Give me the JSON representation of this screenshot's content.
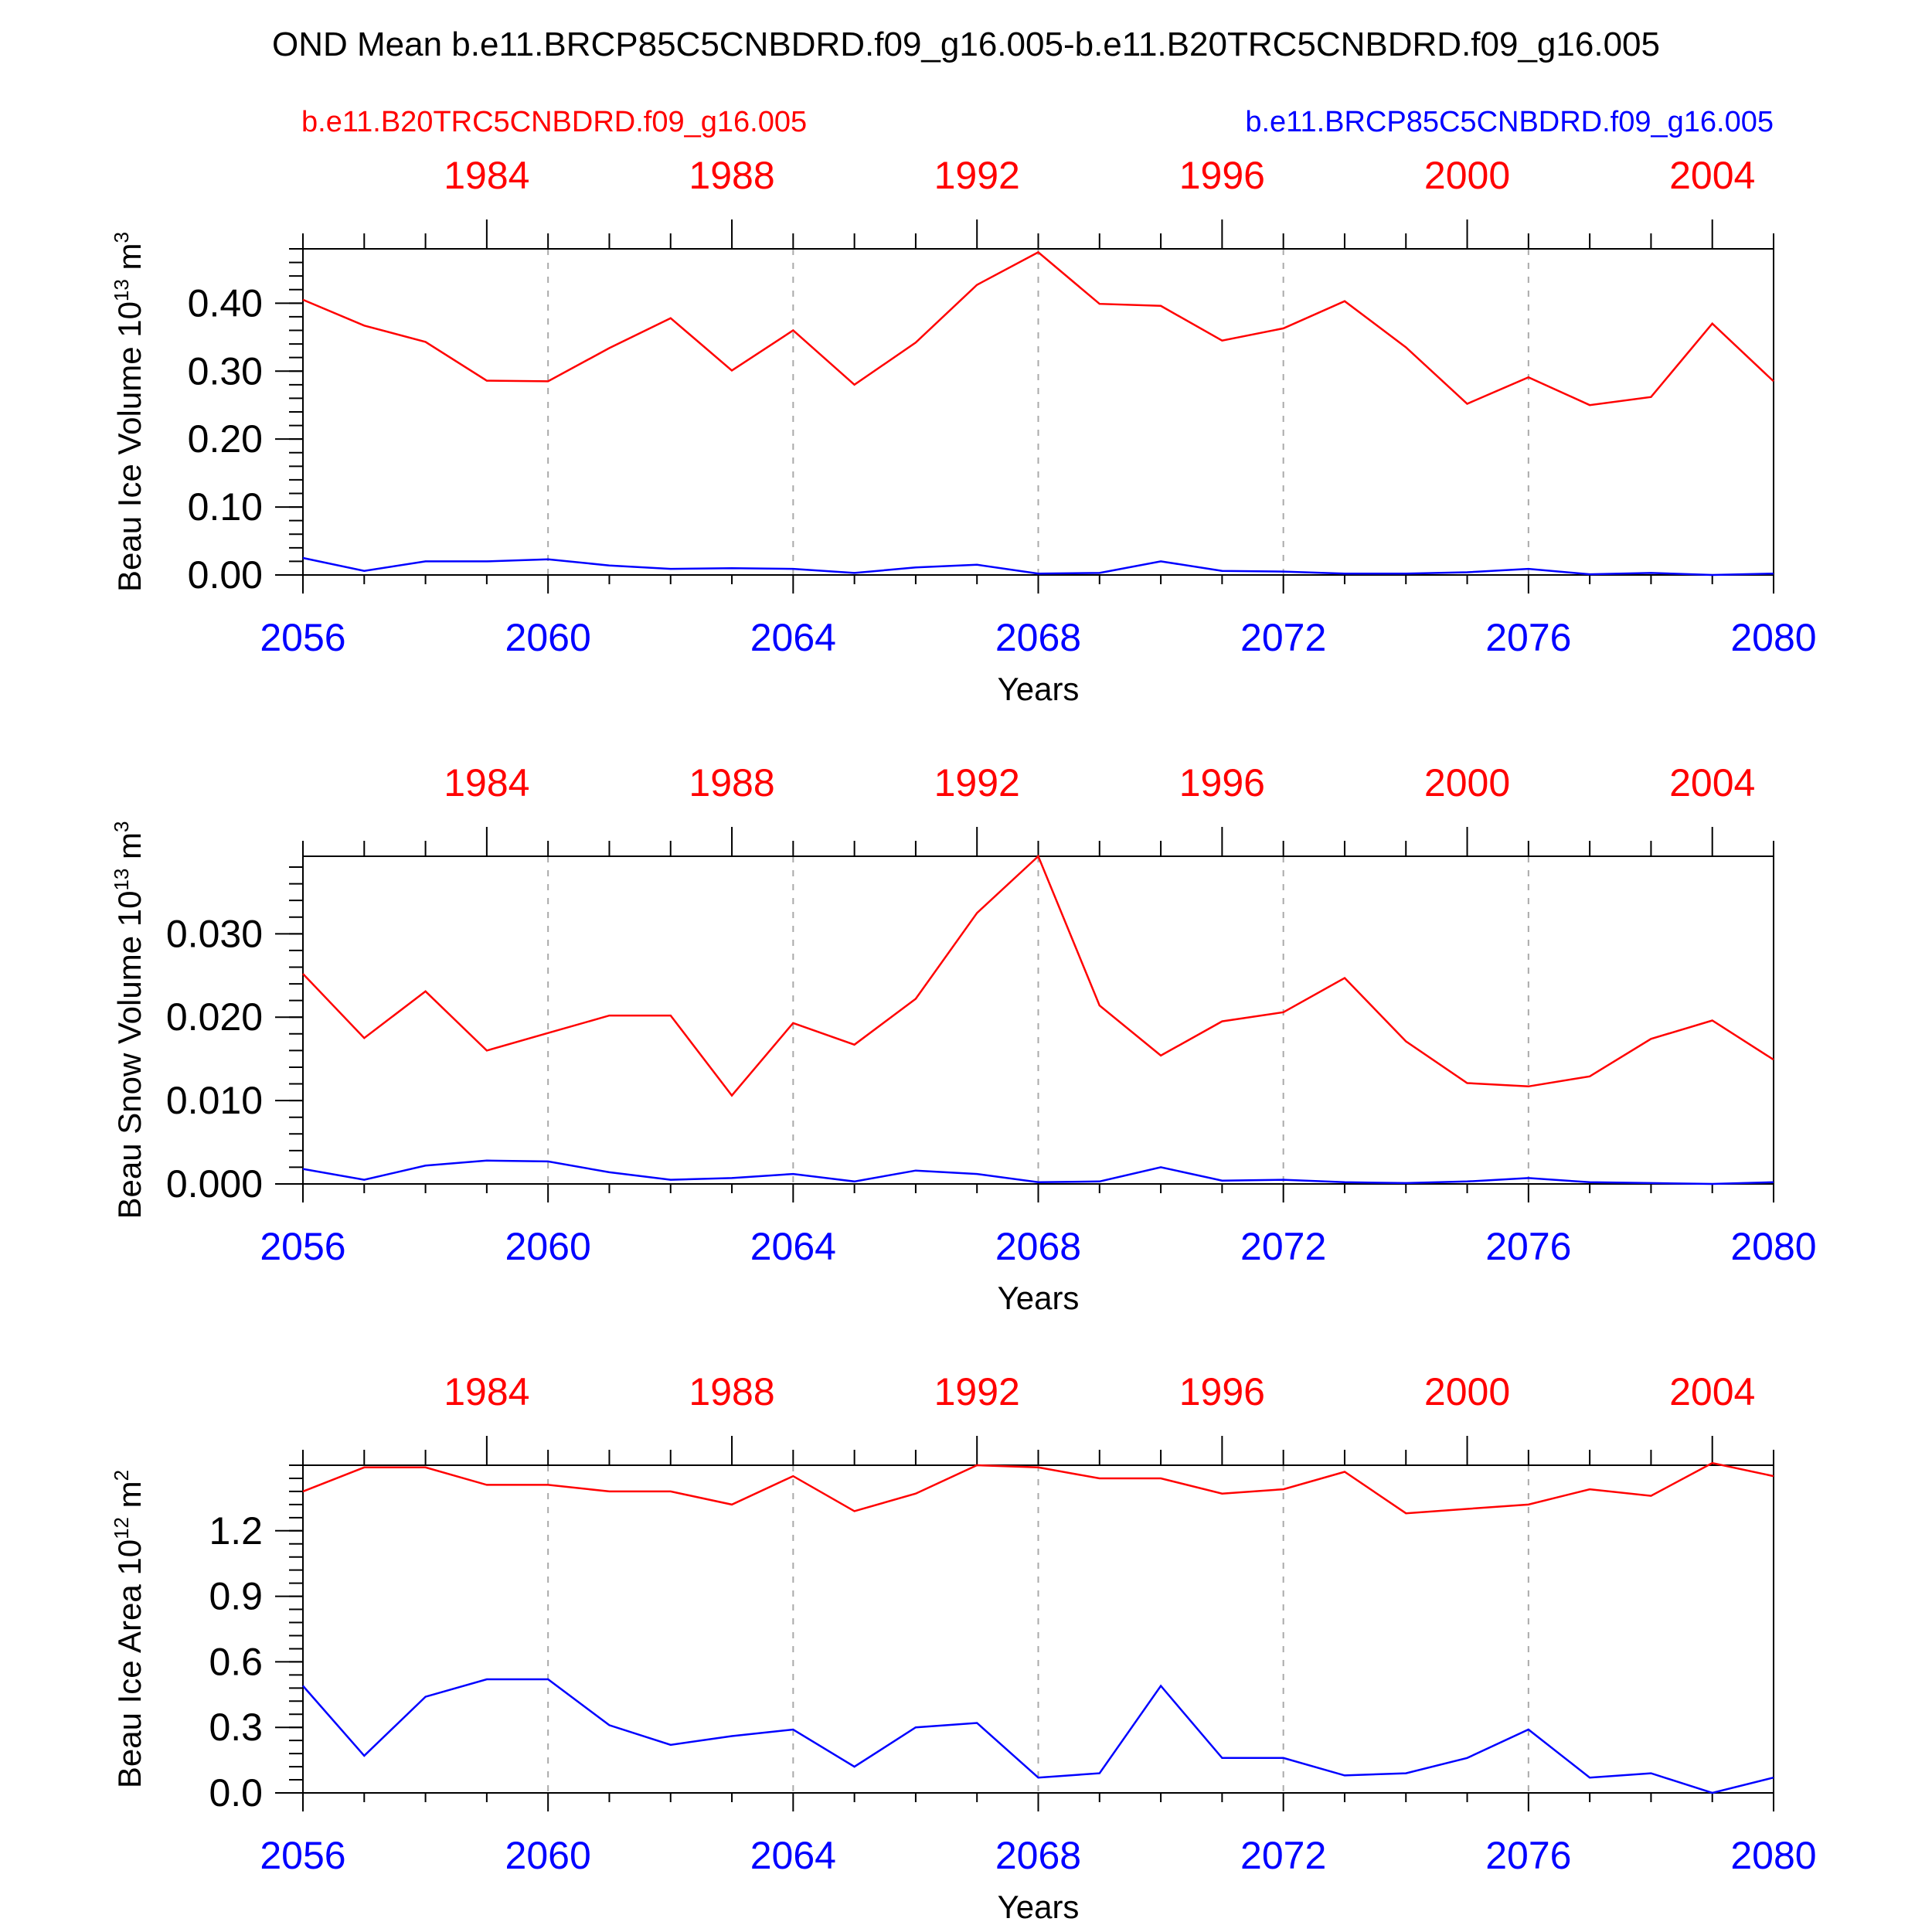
{
  "title": "OND Mean b.e11.BRCP85C5CNBDRD.f09_g16.005-b.e11.B20TRC5CNBDRD.f09_g16.005",
  "legend": {
    "left_label": "b.e11.B20TRC5CNBDRD.f09_g16.005",
    "right_label": "b.e11.BRCP85C5CNBDRD.f09_g16.005"
  },
  "colors": {
    "historical": "#ff0000",
    "future": "#0000ff",
    "axis": "#000000",
    "grid": "#aaaaaa"
  },
  "chart_data": [
    {
      "type": "line",
      "ylabel": "Beau Ice Volume 10",
      "ylabel_exp": "13",
      "ylabel_unit": " m",
      "ylabel_unit_exp": "3",
      "xlabel": "Years",
      "xlim": [
        2056,
        2080
      ],
      "ylim": [
        0,
        0.48
      ],
      "yticks": [
        0,
        0.1,
        0.2,
        0.3,
        0.4
      ],
      "ytick_labels": [
        "0.00",
        "0.10",
        "0.20",
        "0.30",
        "0.40"
      ],
      "yminor_step": 0.02,
      "x": [
        2056,
        2057,
        2058,
        2059,
        2060,
        2061,
        2062,
        2063,
        2064,
        2065,
        2066,
        2067,
        2068,
        2069,
        2070,
        2071,
        2072,
        2073,
        2074,
        2075,
        2076,
        2077,
        2078,
        2079,
        2080
      ],
      "bottom_ticks": [
        2056,
        2060,
        2064,
        2068,
        2072,
        2076,
        2080
      ],
      "bottom_tick_labels": [
        "2056",
        "2060",
        "2064",
        "2068",
        "2072",
        "2076",
        "2080"
      ],
      "top_ticks": [
        1984,
        1988,
        1992,
        1996,
        2000,
        2004
      ],
      "top_tick_labels": [
        "1984",
        "1988",
        "1992",
        "1996",
        "2000",
        "2004"
      ],
      "top_axis_range": [
        1981,
        2005
      ],
      "series": [
        {
          "name": "b.e11.B20TRC5CNBDRD.f09_g16.005",
          "color": "#ff0000",
          "values": [
            0.405,
            0.367,
            0.343,
            0.286,
            0.285,
            0.334,
            0.378,
            0.301,
            0.36,
            0.28,
            0.342,
            0.427,
            0.475,
            0.399,
            0.396,
            0.345,
            0.363,
            0.403,
            0.335,
            0.252,
            0.291,
            0.25,
            0.262,
            0.37,
            0.285
          ]
        },
        {
          "name": "b.e11.BRCP85C5CNBDRD.f09_g16.005",
          "color": "#0000ff",
          "values": [
            0.025,
            0.006,
            0.02,
            0.02,
            0.023,
            0.014,
            0.009,
            0.01,
            0.009,
            0.003,
            0.011,
            0.015,
            0.002,
            0.003,
            0.02,
            0.006,
            0.005,
            0.002,
            0.002,
            0.004,
            0.009,
            0.001,
            0.003,
            0.0,
            0.002
          ]
        }
      ]
    },
    {
      "type": "line",
      "ylabel": "Beau Snow Volume 10",
      "ylabel_exp": "13",
      "ylabel_unit": " m",
      "ylabel_unit_exp": "3",
      "xlabel": "Years",
      "xlim": [
        2056,
        2080
      ],
      "ylim": [
        0,
        0.0393
      ],
      "yticks": [
        0,
        0.01,
        0.02,
        0.03
      ],
      "ytick_labels": [
        "0.000",
        "0.010",
        "0.020",
        "0.030"
      ],
      "yminor_step": 0.002,
      "x": [
        2056,
        2057,
        2058,
        2059,
        2060,
        2061,
        2062,
        2063,
        2064,
        2065,
        2066,
        2067,
        2068,
        2069,
        2070,
        2071,
        2072,
        2073,
        2074,
        2075,
        2076,
        2077,
        2078,
        2079,
        2080
      ],
      "bottom_ticks": [
        2056,
        2060,
        2064,
        2068,
        2072,
        2076,
        2080
      ],
      "bottom_tick_labels": [
        "2056",
        "2060",
        "2064",
        "2068",
        "2072",
        "2076",
        "2080"
      ],
      "top_ticks": [
        1984,
        1988,
        1992,
        1996,
        2000,
        2004
      ],
      "top_tick_labels": [
        "1984",
        "1988",
        "1992",
        "1996",
        "2000",
        "2004"
      ],
      "top_axis_range": [
        1981,
        2005
      ],
      "series": [
        {
          "name": "b.e11.B20TRC5CNBDRD.f09_g16.005",
          "color": "#ff0000",
          "values": [
            0.0252,
            0.0175,
            0.0231,
            0.016,
            0.0181,
            0.0202,
            0.0202,
            0.0106,
            0.0193,
            0.0167,
            0.0222,
            0.0325,
            0.0393,
            0.0214,
            0.0154,
            0.0195,
            0.0206,
            0.0247,
            0.0171,
            0.0121,
            0.0117,
            0.0129,
            0.0174,
            0.0196,
            0.0149
          ]
        },
        {
          "name": "b.e11.BRCP85C5CNBDRD.f09_g16.005",
          "color": "#0000ff",
          "values": [
            0.0018,
            0.0005,
            0.0022,
            0.0028,
            0.0027,
            0.0014,
            0.0005,
            0.0007,
            0.0012,
            0.0003,
            0.0016,
            0.0012,
            0.0002,
            0.0003,
            0.002,
            0.0004,
            0.0005,
            0.0002,
            0.0001,
            0.0003,
            0.0007,
            0.0002,
            0.0001,
            0.0,
            0.0002
          ]
        }
      ]
    },
    {
      "type": "line",
      "ylabel": "Beau Ice Area 10",
      "ylabel_exp": "12",
      "ylabel_unit": " m",
      "ylabel_unit_exp": "2",
      "xlabel": "Years",
      "xlim": [
        2056,
        2080
      ],
      "ylim": [
        0,
        1.5
      ],
      "yticks": [
        0,
        0.3,
        0.6,
        0.9,
        1.2
      ],
      "ytick_labels": [
        "0.0",
        "0.3",
        "0.6",
        "0.9",
        "1.2"
      ],
      "yminor_step": 0.06,
      "x": [
        2056,
        2057,
        2058,
        2059,
        2060,
        2061,
        2062,
        2063,
        2064,
        2065,
        2066,
        2067,
        2068,
        2069,
        2070,
        2071,
        2072,
        2073,
        2074,
        2075,
        2076,
        2077,
        2078,
        2079,
        2080
      ],
      "bottom_ticks": [
        2056,
        2060,
        2064,
        2068,
        2072,
        2076,
        2080
      ],
      "bottom_tick_labels": [
        "2056",
        "2060",
        "2064",
        "2068",
        "2072",
        "2076",
        "2080"
      ],
      "top_ticks": [
        1984,
        1988,
        1992,
        1996,
        2000,
        2004
      ],
      "top_tick_labels": [
        "1984",
        "1988",
        "1992",
        "1996",
        "2000",
        "2004"
      ],
      "top_axis_range": [
        1981,
        2005
      ],
      "series": [
        {
          "name": "b.e11.B20TRC5CNBDRD.f09_g16.005",
          "color": "#ff0000",
          "values": [
            1.38,
            1.49,
            1.49,
            1.41,
            1.41,
            1.38,
            1.38,
            1.32,
            1.45,
            1.29,
            1.37,
            1.5,
            1.49,
            1.44,
            1.44,
            1.37,
            1.39,
            1.47,
            1.28,
            1.3,
            1.32,
            1.39,
            1.36,
            1.51,
            1.45
          ]
        },
        {
          "name": "b.e11.BRCP85C5CNBDRD.f09_g16.005",
          "color": "#0000ff",
          "values": [
            0.49,
            0.17,
            0.44,
            0.52,
            0.52,
            0.31,
            0.22,
            0.26,
            0.29,
            0.12,
            0.3,
            0.32,
            0.07,
            0.09,
            0.49,
            0.16,
            0.16,
            0.08,
            0.09,
            0.16,
            0.29,
            0.07,
            0.09,
            0.0,
            0.07
          ]
        }
      ]
    }
  ]
}
